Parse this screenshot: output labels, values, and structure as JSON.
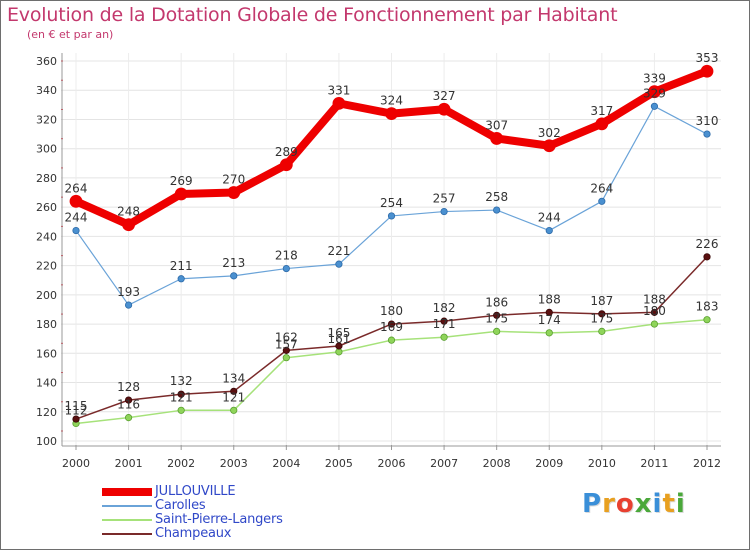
{
  "chart_data": {
    "type": "line",
    "title": "Evolution de la Dotation Globale de Fonctionnement par Habitant",
    "subtitle": "(en € et par an)",
    "categories": [
      "2000",
      "2001",
      "2002",
      "2003",
      "2004",
      "2005",
      "2006",
      "2007",
      "2008",
      "2009",
      "2010",
      "2011",
      "2012"
    ],
    "ylim": [
      100,
      360
    ],
    "yticks": [
      100,
      120,
      140,
      160,
      180,
      200,
      220,
      240,
      260,
      280,
      300,
      320,
      340,
      360
    ],
    "grid": true,
    "legend_position": "bottom-left",
    "series": [
      {
        "name": "JULLOUVILLE",
        "color": "#ee0000",
        "values": [
          264,
          248,
          269,
          270,
          289,
          331,
          324,
          327,
          307,
          302,
          317,
          339,
          353
        ]
      },
      {
        "name": "Carolles",
        "color": "#5b9bd1",
        "values": [
          244,
          193,
          211,
          213,
          218,
          221,
          254,
          257,
          258,
          244,
          264,
          329,
          310
        ]
      },
      {
        "name": "Saint-Pierre-Langers",
        "color": "#9ee06a",
        "values": [
          112,
          116,
          121,
          121,
          157,
          161,
          169,
          171,
          175,
          174,
          175,
          180,
          183
        ]
      },
      {
        "name": "Champeaux",
        "color": "#6b1a1a",
        "values": [
          115,
          128,
          132,
          134,
          162,
          165,
          180,
          182,
          186,
          188,
          187,
          188,
          226
        ]
      }
    ]
  },
  "brand": {
    "letters": [
      "P",
      "r",
      "o",
      "x",
      "i",
      "t",
      "i"
    ],
    "colors": [
      "#3a8fd8",
      "#e8a020",
      "#e84030",
      "#4aa83a",
      "#3a8fd8",
      "#e8a020",
      "#4aa83a"
    ]
  }
}
